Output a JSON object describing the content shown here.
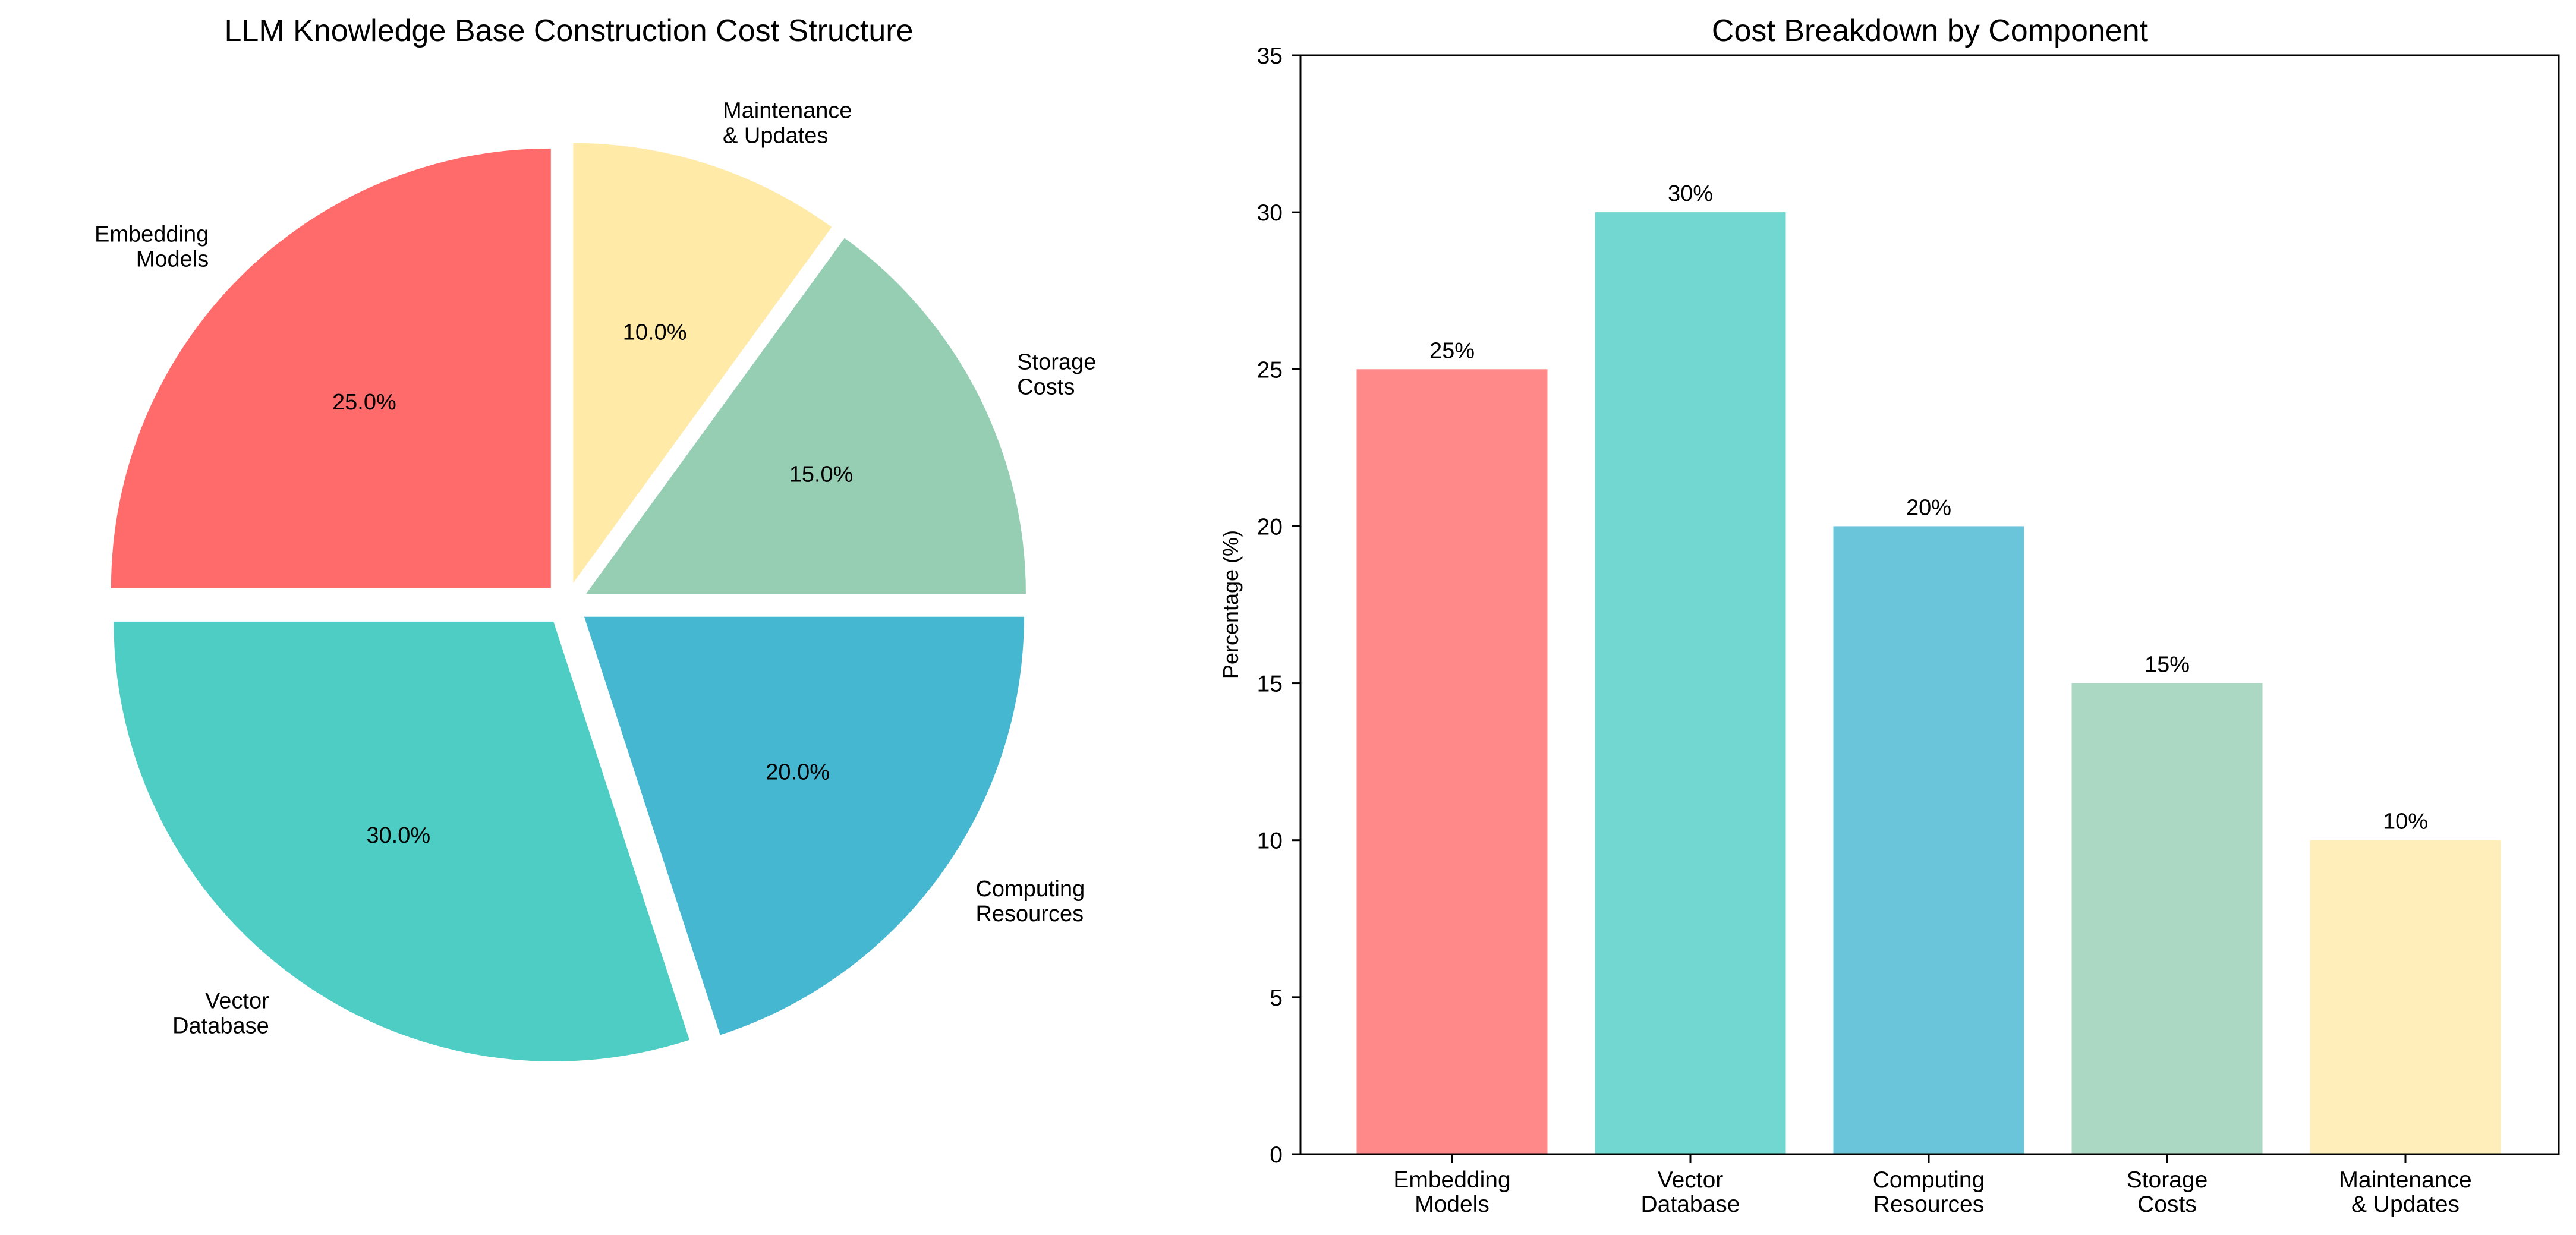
{
  "chart_data": [
    {
      "type": "pie",
      "title": "LLM Knowledge Base Construction Cost Structure",
      "start_angle_deg": 90,
      "explode": 0.05,
      "slices": [
        {
          "label": [
            "Embedding",
            "Models"
          ],
          "value": 25,
          "pct_label": "25.0%",
          "color": "#FF6B6B"
        },
        {
          "label": [
            "Vector",
            "Database"
          ],
          "value": 30,
          "pct_label": "30.0%",
          "color": "#4ECDC4"
        },
        {
          "label": [
            "Computing",
            "Resources"
          ],
          "value": 20,
          "pct_label": "20.0%",
          "color": "#45B7D1"
        },
        {
          "label": [
            "Storage",
            "Costs"
          ],
          "value": 15,
          "pct_label": "15.0%",
          "color": "#96CEB4"
        },
        {
          "label": [
            "Maintenance",
            "& Updates"
          ],
          "value": 10,
          "pct_label": "10.0%",
          "color": "#FFEAA7"
        }
      ]
    },
    {
      "type": "bar",
      "title": "Cost Breakdown by Component",
      "xlabel": "",
      "ylabel": "Percentage (%)",
      "ylim": [
        0,
        35
      ],
      "yticks": [
        0,
        5,
        10,
        15,
        20,
        25,
        30,
        35
      ],
      "categories": [
        [
          "Embedding",
          "Models"
        ],
        [
          "Vector",
          "Database"
        ],
        [
          "Computing",
          "Resources"
        ],
        [
          "Storage",
          "Costs"
        ],
        [
          "Maintenance",
          "& Updates"
        ]
      ],
      "values": [
        25,
        30,
        20,
        15,
        10
      ],
      "value_labels": [
        "25%",
        "30%",
        "20%",
        "15%",
        "10%"
      ],
      "colors": [
        "#FF8989",
        "#71D7D0",
        "#6AC5DA",
        "#ABD8C3",
        "#FFEEB9"
      ],
      "grid": false
    }
  ]
}
